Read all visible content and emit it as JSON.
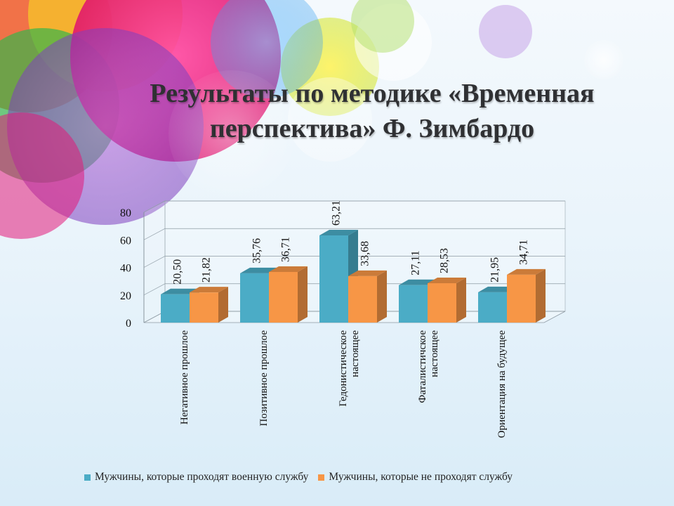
{
  "slide": {
    "title": "Результаты по методике «Временная перспектива» Ф. Зимбардо"
  },
  "colors": {
    "series_men_service": "#4bacc6",
    "series_men_no_service": "#f79646"
  },
  "chart_data": {
    "type": "bar",
    "title": "",
    "xlabel": "",
    "ylabel": "",
    "ylim": [
      0,
      80
    ],
    "yticks": [
      "0",
      "20",
      "40",
      "60",
      "80"
    ],
    "grid": true,
    "legend_position": "bottom",
    "categories": [
      "Негативное прошлое",
      "Позитивное прошлое",
      "Гедонистическое настоящее",
      "Фаталистичское настоящее",
      "Ориентация на будущее"
    ],
    "series": [
      {
        "name": "Мужчины, которые проходят военную службу",
        "values": [
          20.5,
          35.76,
          63.21,
          27.11,
          21.95
        ],
        "labels": [
          "20,50",
          "35,76",
          "63,21",
          "27,11",
          "21,95"
        ]
      },
      {
        "name": "Мужчины, которые не проходят службу",
        "values": [
          21.82,
          36.71,
          33.68,
          28.53,
          34.71
        ],
        "labels": [
          "21,82",
          "36,71",
          "33,68",
          "28,53",
          "34,71"
        ]
      }
    ]
  }
}
